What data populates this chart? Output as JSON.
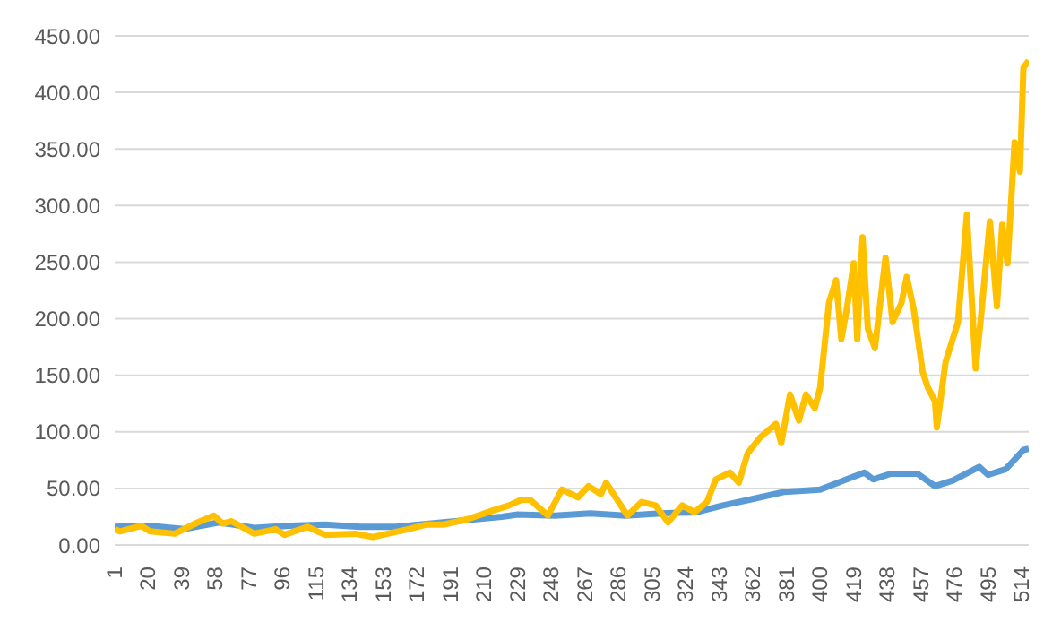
{
  "chart_data": {
    "type": "line",
    "xlim": [
      1,
      518
    ],
    "xticks": [
      1,
      20,
      39,
      58,
      77,
      96,
      115,
      134,
      153,
      172,
      191,
      210,
      229,
      248,
      267,
      286,
      305,
      324,
      343,
      362,
      381,
      400,
      419,
      438,
      457,
      476,
      495,
      514
    ],
    "ylim": [
      0,
      450
    ],
    "yticks": [
      {
        "value": 0,
        "label": "0.00"
      },
      {
        "value": 50,
        "label": "50.00"
      },
      {
        "value": 100,
        "label": "100.00"
      },
      {
        "value": 150,
        "label": "150.00"
      },
      {
        "value": 200,
        "label": "200.00"
      },
      {
        "value": 250,
        "label": "250.00"
      },
      {
        "value": 300,
        "label": "300.00"
      },
      {
        "value": 350,
        "label": "350.00"
      },
      {
        "value": 400,
        "label": "400.00"
      },
      {
        "value": 450,
        "label": "450.00"
      }
    ],
    "grid": "y",
    "legend": false,
    "series": [
      {
        "color": "#5b9bd5",
        "x": [
          1,
          20,
          40,
          60,
          80,
          100,
          120,
          140,
          160,
          180,
          200,
          220,
          229,
          250,
          270,
          290,
          310,
          330,
          345,
          360,
          380,
          400,
          415,
          425,
          430,
          440,
          455,
          465,
          475,
          490,
          495,
          505,
          515,
          518
        ],
        "values": [
          16,
          17,
          14,
          20,
          15,
          17,
          18,
          16,
          16,
          19,
          22,
          25,
          27,
          26,
          28,
          26,
          28,
          29,
          35,
          40,
          47,
          49,
          58,
          64,
          58,
          63,
          63,
          52,
          57,
          69,
          62,
          67,
          84,
          85
        ]
      },
      {
        "color": "#ffc000",
        "x": [
          1,
          4,
          16,
          21,
          35,
          48,
          57,
          62,
          67,
          80,
          92,
          97,
          110,
          120,
          137,
          147,
          167,
          177,
          187,
          201,
          214,
          224,
          231,
          236,
          246,
          254,
          263,
          269,
          276,
          279,
          291,
          299,
          307,
          314,
          322,
          329,
          336,
          341,
          349,
          354,
          359,
          366,
          375,
          378,
          383,
          388,
          392,
          397,
          400,
          405,
          409,
          412,
          415,
          419,
          421,
          424,
          427,
          431,
          437,
          441,
          446,
          449,
          453,
          458,
          461,
          465,
          466,
          471,
          478,
          483,
          488,
          491,
          496,
          500,
          503,
          506,
          510,
          513,
          515,
          518
        ],
        "values": [
          14,
          12,
          17,
          12,
          10,
          20,
          26,
          19,
          21,
          10,
          14,
          9,
          16,
          9,
          10,
          7,
          14,
          18,
          18,
          23,
          30,
          35,
          40,
          40,
          26,
          49,
          42,
          52,
          45,
          55,
          26,
          38,
          35,
          20,
          35,
          29,
          38,
          58,
          64,
          55,
          81,
          95,
          107,
          90,
          133,
          110,
          133,
          121,
          139,
          214,
          234,
          182,
          208,
          249,
          182,
          272,
          191,
          174,
          254,
          197,
          214,
          237,
          208,
          153,
          139,
          127,
          104,
          162,
          197,
          292,
          156,
          202,
          286,
          211,
          283,
          249,
          356,
          330,
          422,
          428
        ]
      }
    ]
  }
}
